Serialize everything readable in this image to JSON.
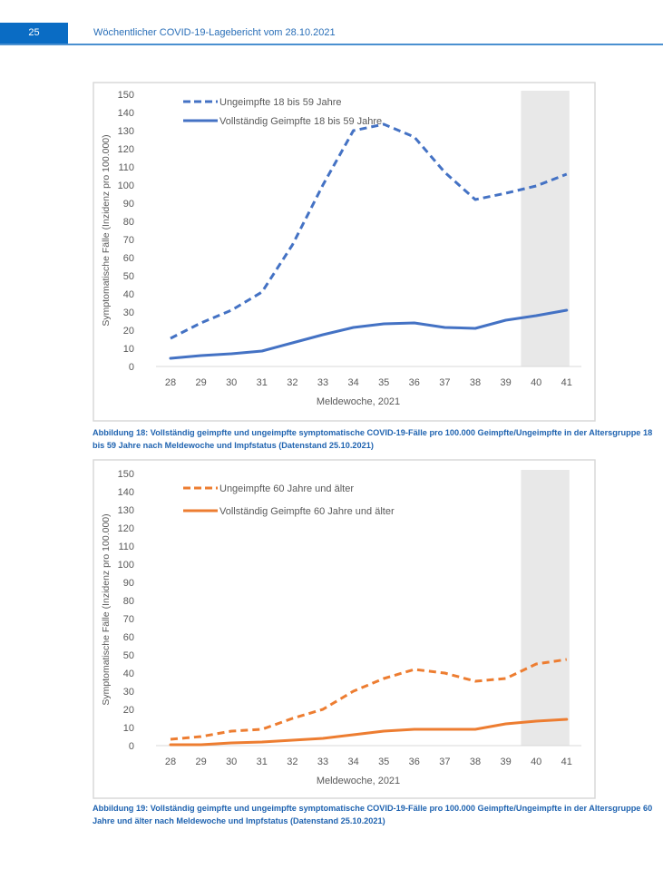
{
  "header": {
    "page_number": "25",
    "title": "Wöchentlicher COVID-19-Lagebericht vom 28.10.2021",
    "accent_color": "#0a6cc4"
  },
  "figures": [
    {
      "caption": "Abbildung 18: Vollständig geimpfte und ungeimpfte symptomatische COVID-19-Fälle pro 100.000 Geimpfte/Ungeimpfte in der Altersgruppe 18 bis 59 Jahre nach Meldewoche und Impfstatus (Datenstand 25.10.2021)"
    },
    {
      "caption": "Abbildung 19: Vollständig geimpfte und ungeimpfte symptomatische COVID-19-Fälle pro 100.000 Geimpfte/Ungeimpfte in der Altersgruppe 60 Jahre und älter nach Meldewoche und Impfstatus (Datenstand 25.10.2021)"
    }
  ],
  "chart_data": [
    {
      "type": "line",
      "title": "",
      "xlabel": "Meldewoche, 2021",
      "ylabel": "Symptomatische Fälle (Inzidenz pro 100.000)",
      "categories": [
        "28",
        "29",
        "30",
        "31",
        "32",
        "33",
        "34",
        "35",
        "36",
        "37",
        "38",
        "39",
        "40",
        "41"
      ],
      "ylim": [
        0,
        150
      ],
      "yticks": [
        0,
        10,
        20,
        30,
        40,
        50,
        60,
        70,
        80,
        90,
        100,
        110,
        120,
        130,
        140,
        150
      ],
      "grid": false,
      "legend_position": "top-left",
      "shaded_weeks": [
        "40",
        "41"
      ],
      "shade_color": "#e8e8e8",
      "series": [
        {
          "name": "Ungeimpfte 18 bis 59 Jahre",
          "style": "dashed",
          "color": "#4472c4",
          "values": [
            15.5,
            24,
            31,
            41,
            67,
            100,
            130,
            133.5,
            126.5,
            107,
            92,
            95.5,
            99.5,
            106
          ]
        },
        {
          "name": "Vollständig Geimpfte 18 bis 59 Jahre",
          "style": "solid",
          "color": "#4472c4",
          "values": [
            4.5,
            6,
            7,
            8.5,
            13,
            17.5,
            21.5,
            23.5,
            24,
            21.5,
            21,
            25.5,
            28,
            31
          ]
        }
      ]
    },
    {
      "type": "line",
      "title": "",
      "xlabel": "Meldewoche, 2021",
      "ylabel": "Symptomatische Fälle (Inzidenz pro 100.000)",
      "categories": [
        "28",
        "29",
        "30",
        "31",
        "32",
        "33",
        "34",
        "35",
        "36",
        "37",
        "38",
        "39",
        "40",
        "41"
      ],
      "ylim": [
        0,
        150
      ],
      "yticks": [
        0,
        10,
        20,
        30,
        40,
        50,
        60,
        70,
        80,
        90,
        100,
        110,
        120,
        130,
        140,
        150
      ],
      "grid": false,
      "legend_position": "top-left",
      "shaded_weeks": [
        "40",
        "41"
      ],
      "shade_color": "#e8e8e8",
      "series": [
        {
          "name": "Ungeimpfte 60 Jahre und älter",
          "style": "dashed",
          "color": "#ed7d31",
          "values": [
            3.5,
            5,
            8,
            9,
            15,
            20,
            30,
            37,
            42,
            40,
            35.5,
            37,
            45,
            47.5
          ]
        },
        {
          "name": "Vollständig Geimpfte 60 Jahre und älter",
          "style": "solid",
          "color": "#ed7d31",
          "values": [
            0.5,
            0.5,
            1.5,
            2,
            3,
            4,
            6,
            8,
            9,
            9,
            9,
            12,
            13.5,
            14.5
          ]
        }
      ]
    }
  ]
}
